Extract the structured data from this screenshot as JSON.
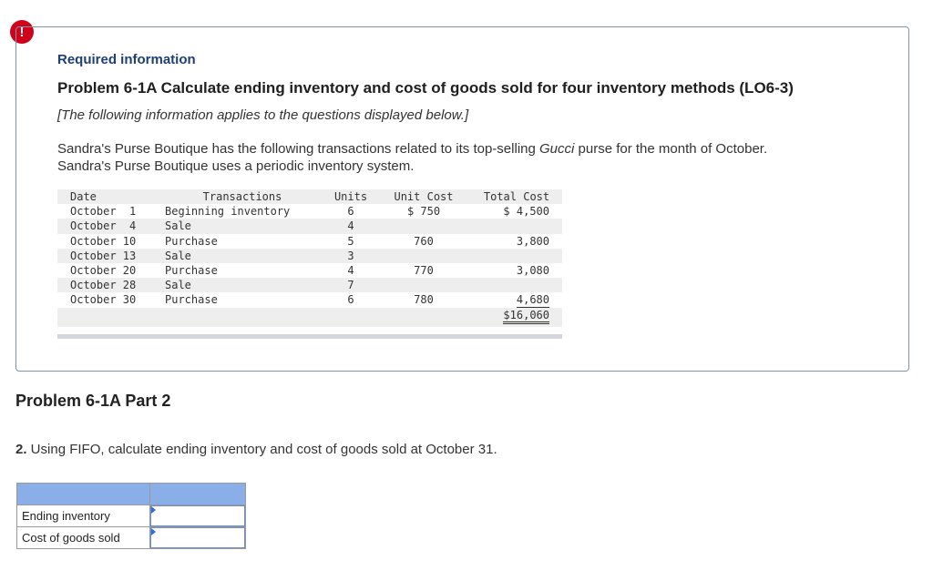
{
  "alert": {
    "icon": "exclamation-icon",
    "glyph": "!"
  },
  "info": {
    "required_label": "Required information",
    "problem_title": "Problem 6-1A Calculate ending inventory and cost of goods sold for four inventory methods (LO6-3)",
    "note": "[The following information applies to the questions displayed below.]",
    "desc_line1_prefix": "Sandra's Purse Boutique has the following transactions related to its top-selling ",
    "desc_line1_brand": "Gucci",
    "desc_line1_suffix": " purse for the month of October.",
    "desc_line2": "Sandra's Purse Boutique uses a periodic inventory system."
  },
  "transactions": {
    "headers": {
      "date": "Date",
      "transactions": "Transactions",
      "units": "Units",
      "unit_cost": "Unit Cost",
      "total_cost": "Total Cost"
    },
    "rows": [
      {
        "date": "October  1",
        "transaction": "Beginning inventory",
        "units": "6",
        "unit_cost": "$ 750",
        "total_cost": "$ 4,500"
      },
      {
        "date": "October  4",
        "transaction": "Sale",
        "units": "4",
        "unit_cost": "",
        "total_cost": ""
      },
      {
        "date": "October 10",
        "transaction": "Purchase",
        "units": "5",
        "unit_cost": "760",
        "total_cost": "3,800"
      },
      {
        "date": "October 13",
        "transaction": "Sale",
        "units": "3",
        "unit_cost": "",
        "total_cost": ""
      },
      {
        "date": "October 20",
        "transaction": "Purchase",
        "units": "4",
        "unit_cost": "770",
        "total_cost": "3,080"
      },
      {
        "date": "October 28",
        "transaction": "Sale",
        "units": "7",
        "unit_cost": "",
        "total_cost": ""
      },
      {
        "date": "October 30",
        "transaction": "Purchase",
        "units": "6",
        "unit_cost": "780",
        "total_cost": "4,680"
      }
    ],
    "grand_total": "$16,060"
  },
  "part": {
    "title": "Problem 6-1A Part 2",
    "question_number": "2.",
    "question_text": " Using FIFO, calculate ending inventory and cost of goods sold at October 31."
  },
  "answer": {
    "rows": [
      {
        "label": "Ending inventory",
        "value": ""
      },
      {
        "label": "Cost of goods sold",
        "value": ""
      }
    ],
    "header_color": "#8aaee8"
  }
}
